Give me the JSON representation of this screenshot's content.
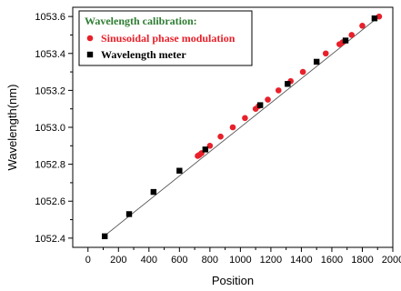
{
  "chart_data": {
    "type": "scatter",
    "xlabel": "Position",
    "ylabel": "Wavelength(nm)",
    "xlim": [
      -100,
      2000
    ],
    "ylim": [
      1052.35,
      1053.65
    ],
    "xticks": [
      0,
      200,
      400,
      600,
      800,
      1000,
      1200,
      1400,
      1600,
      1800,
      2000
    ],
    "yticks": [
      1052.4,
      1052.6,
      1052.8,
      1053.0,
      1053.2,
      1053.4,
      1053.6
    ],
    "grid": false,
    "legend": {
      "placement": "top-left",
      "title": "Wavelength calibration:"
    },
    "fit_line": {
      "x": [
        105,
        1910
      ],
      "y": [
        1052.41,
        1053.6
      ]
    },
    "series": [
      {
        "name": "Sinusoidal  phase  modulation",
        "marker": "circle",
        "color": "#e8202a",
        "points": [
          [
            720,
            1052.845
          ],
          [
            730,
            1052.85
          ],
          [
            745,
            1052.86
          ],
          [
            800,
            1052.9
          ],
          [
            870,
            1052.95
          ],
          [
            950,
            1053.0
          ],
          [
            1030,
            1053.05
          ],
          [
            1100,
            1053.1
          ],
          [
            1120,
            1053.115
          ],
          [
            1180,
            1053.15
          ],
          [
            1250,
            1053.2
          ],
          [
            1330,
            1053.25
          ],
          [
            1410,
            1053.3
          ],
          [
            1560,
            1053.4
          ],
          [
            1650,
            1053.45
          ],
          [
            1670,
            1053.46
          ],
          [
            1730,
            1053.5
          ],
          [
            1800,
            1053.55
          ],
          [
            1910,
            1053.6
          ]
        ]
      },
      {
        "name": "Wavelength meter",
        "marker": "square",
        "color": "#000000",
        "points": [
          [
            110,
            1052.41
          ],
          [
            270,
            1052.53
          ],
          [
            430,
            1052.65
          ],
          [
            600,
            1052.765
          ],
          [
            770,
            1052.88
          ],
          [
            1130,
            1053.12
          ],
          [
            1310,
            1053.235
          ],
          [
            1500,
            1053.355
          ],
          [
            1690,
            1053.47
          ],
          [
            1880,
            1053.59
          ]
        ]
      }
    ]
  }
}
